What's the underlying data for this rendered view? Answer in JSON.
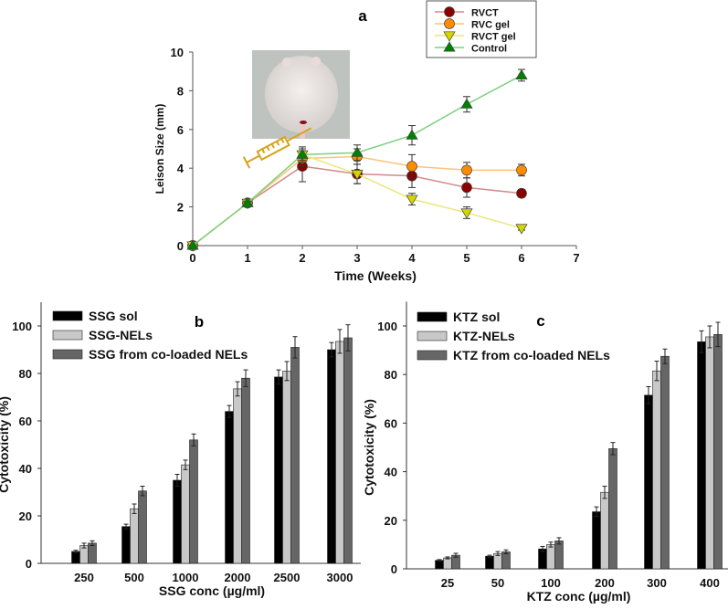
{
  "chart_data": [
    {
      "type": "line",
      "panel_label": "a",
      "title": "",
      "xlabel": "Time (Weeks)",
      "ylabel": "Leison Size (mm)",
      "xlim": [
        0,
        7
      ],
      "ylim": [
        0,
        10
      ],
      "xticks": [
        "0",
        "1",
        "2",
        "3",
        "4",
        "5",
        "6",
        "7"
      ],
      "yticks": [
        "0",
        "2",
        "4",
        "6",
        "8",
        "10"
      ],
      "x": [
        0,
        1,
        2,
        3,
        4,
        5,
        6
      ],
      "legend_position": "top-right",
      "series": [
        {
          "name": "RVCT",
          "color": "#8b0000",
          "line": "#d28a8a",
          "marker": "circle",
          "values": [
            0,
            2.2,
            4.1,
            3.7,
            3.6,
            3.0,
            2.7
          ],
          "errors": [
            0,
            0.1,
            0.8,
            0.5,
            0.6,
            0.5,
            0.2
          ]
        },
        {
          "name": "RVC gel",
          "color": "#ff8c00",
          "line": "#ffc27a",
          "marker": "circle",
          "values": [
            0,
            2.2,
            4.5,
            4.6,
            4.1,
            3.9,
            3.9
          ],
          "errors": [
            0,
            0.1,
            0.4,
            0.4,
            0.6,
            0.4,
            0.3
          ]
        },
        {
          "name": "RVCT gel",
          "color": "#d4d400",
          "line": "#e8e87a",
          "marker": "triangle-down",
          "values": [
            0,
            2.2,
            4.7,
            3.7,
            2.4,
            1.7,
            0.9
          ],
          "errors": [
            0,
            0.1,
            0.3,
            0.5,
            0.3,
            0.3,
            0.1
          ]
        },
        {
          "name": "Control",
          "color": "#008000",
          "line": "#7fcf7f",
          "marker": "triangle-up",
          "values": [
            0,
            2.2,
            4.7,
            4.8,
            5.7,
            7.3,
            8.8
          ],
          "errors": [
            0,
            0.1,
            0.4,
            0.4,
            0.5,
            0.4,
            0.3
          ]
        }
      ]
    },
    {
      "type": "bar",
      "panel_label": "b",
      "xlabel": "SSG conc (µg/ml)",
      "ylabel": "Cytotoxicity (%)",
      "ylim": [
        0,
        110
      ],
      "yticks": [
        "0",
        "20",
        "40",
        "60",
        "80",
        "100"
      ],
      "categories": [
        "250",
        "500",
        "1000",
        "2000",
        "2500",
        "3000"
      ],
      "legend_position": "top-left",
      "series": [
        {
          "name": "SSG sol",
          "color": "#000000",
          "values": [
            5,
            15.5,
            35,
            64,
            78.5,
            90
          ],
          "errors": [
            0.5,
            1,
            2.5,
            2.5,
            3,
            3
          ]
        },
        {
          "name": "SSG-NELs",
          "color": "#c8c8c8",
          "values": [
            7.5,
            23,
            41.5,
            73.5,
            81,
            93.5
          ],
          "errors": [
            1,
            2,
            2,
            3,
            4,
            5
          ]
        },
        {
          "name": "SSG from co-loaded NELs",
          "color": "#666666",
          "values": [
            8.5,
            30.5,
            52,
            78,
            91,
            95
          ],
          "errors": [
            1,
            2,
            2.5,
            3.5,
            4.5,
            5.5
          ]
        }
      ]
    },
    {
      "type": "bar",
      "panel_label": "c",
      "xlabel": "KTZ conc (µg/ml)",
      "ylabel": "Cytotoxicity (%)",
      "ylim": [
        0,
        110
      ],
      "yticks": [
        "0",
        "20",
        "40",
        "60",
        "80",
        "100"
      ],
      "categories": [
        "25",
        "50",
        "100",
        "200",
        "300",
        "400"
      ],
      "legend_position": "top-left",
      "series": [
        {
          "name": "KTZ sol",
          "color": "#000000",
          "values": [
            3.5,
            5.2,
            8.2,
            23.5,
            71.5,
            93.5
          ],
          "errors": [
            0.3,
            0.4,
            1,
            2,
            3.5,
            4.5
          ]
        },
        {
          "name": "KTZ-NELs",
          "color": "#c8c8c8",
          "values": [
            4.5,
            6.3,
            10,
            31.5,
            81.5,
            95.5
          ],
          "errors": [
            0.4,
            0.8,
            1,
            2.5,
            4,
            4.5
          ]
        },
        {
          "name": "KTZ from co-loaded NELs",
          "color": "#666666",
          "values": [
            5.6,
            7,
            11.5,
            49.5,
            87.5,
            96.5
          ],
          "errors": [
            0.8,
            0.8,
            1.3,
            2.5,
            3,
            5
          ]
        }
      ]
    }
  ]
}
